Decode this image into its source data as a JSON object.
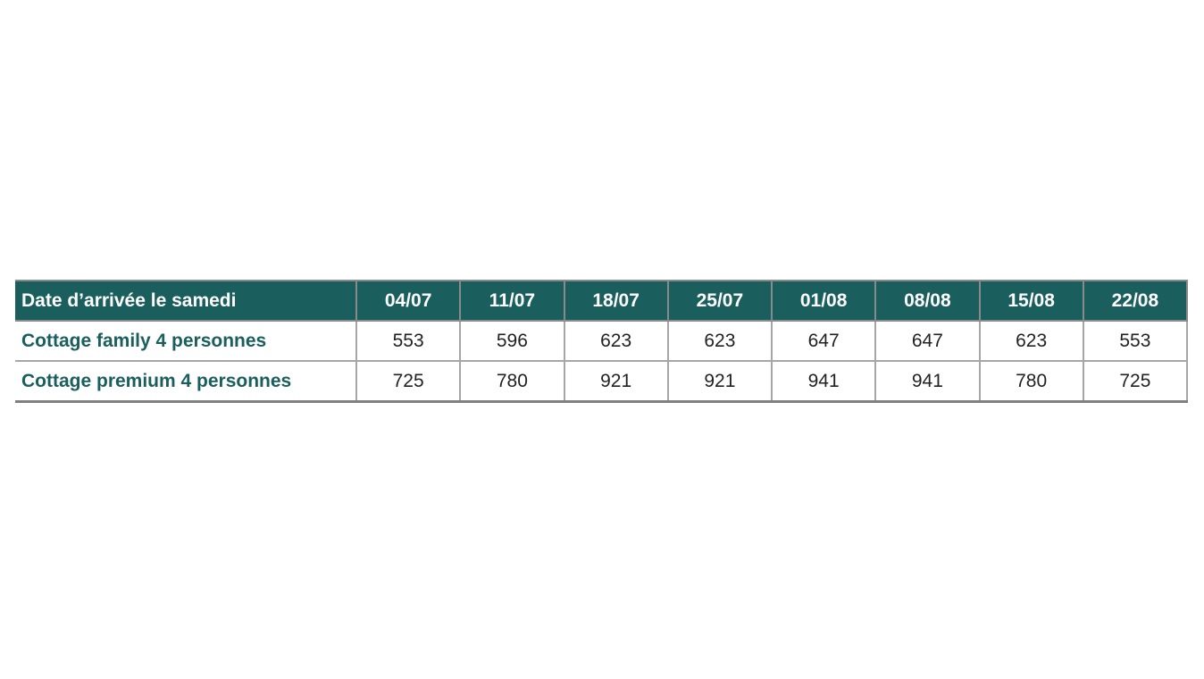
{
  "table": {
    "header_label": "Date d’arrivée le samedi",
    "dates": [
      "04/07",
      "11/07",
      "18/07",
      "25/07",
      "01/08",
      "08/08",
      "15/08",
      "22/08"
    ],
    "rows": [
      {
        "label": "Cottage family 4 personnes",
        "values": [
          "553",
          "596",
          "623",
          "623",
          "647",
          "647",
          "623",
          "553"
        ]
      },
      {
        "label": "Cottage premium 4 personnes",
        "values": [
          "725",
          "780",
          "921",
          "921",
          "941",
          "941",
          "780",
          "725"
        ]
      }
    ]
  },
  "colors": {
    "header_bg": "#1a5e5e",
    "label_text": "#1a5e5e",
    "border": "#a6a6a6"
  }
}
